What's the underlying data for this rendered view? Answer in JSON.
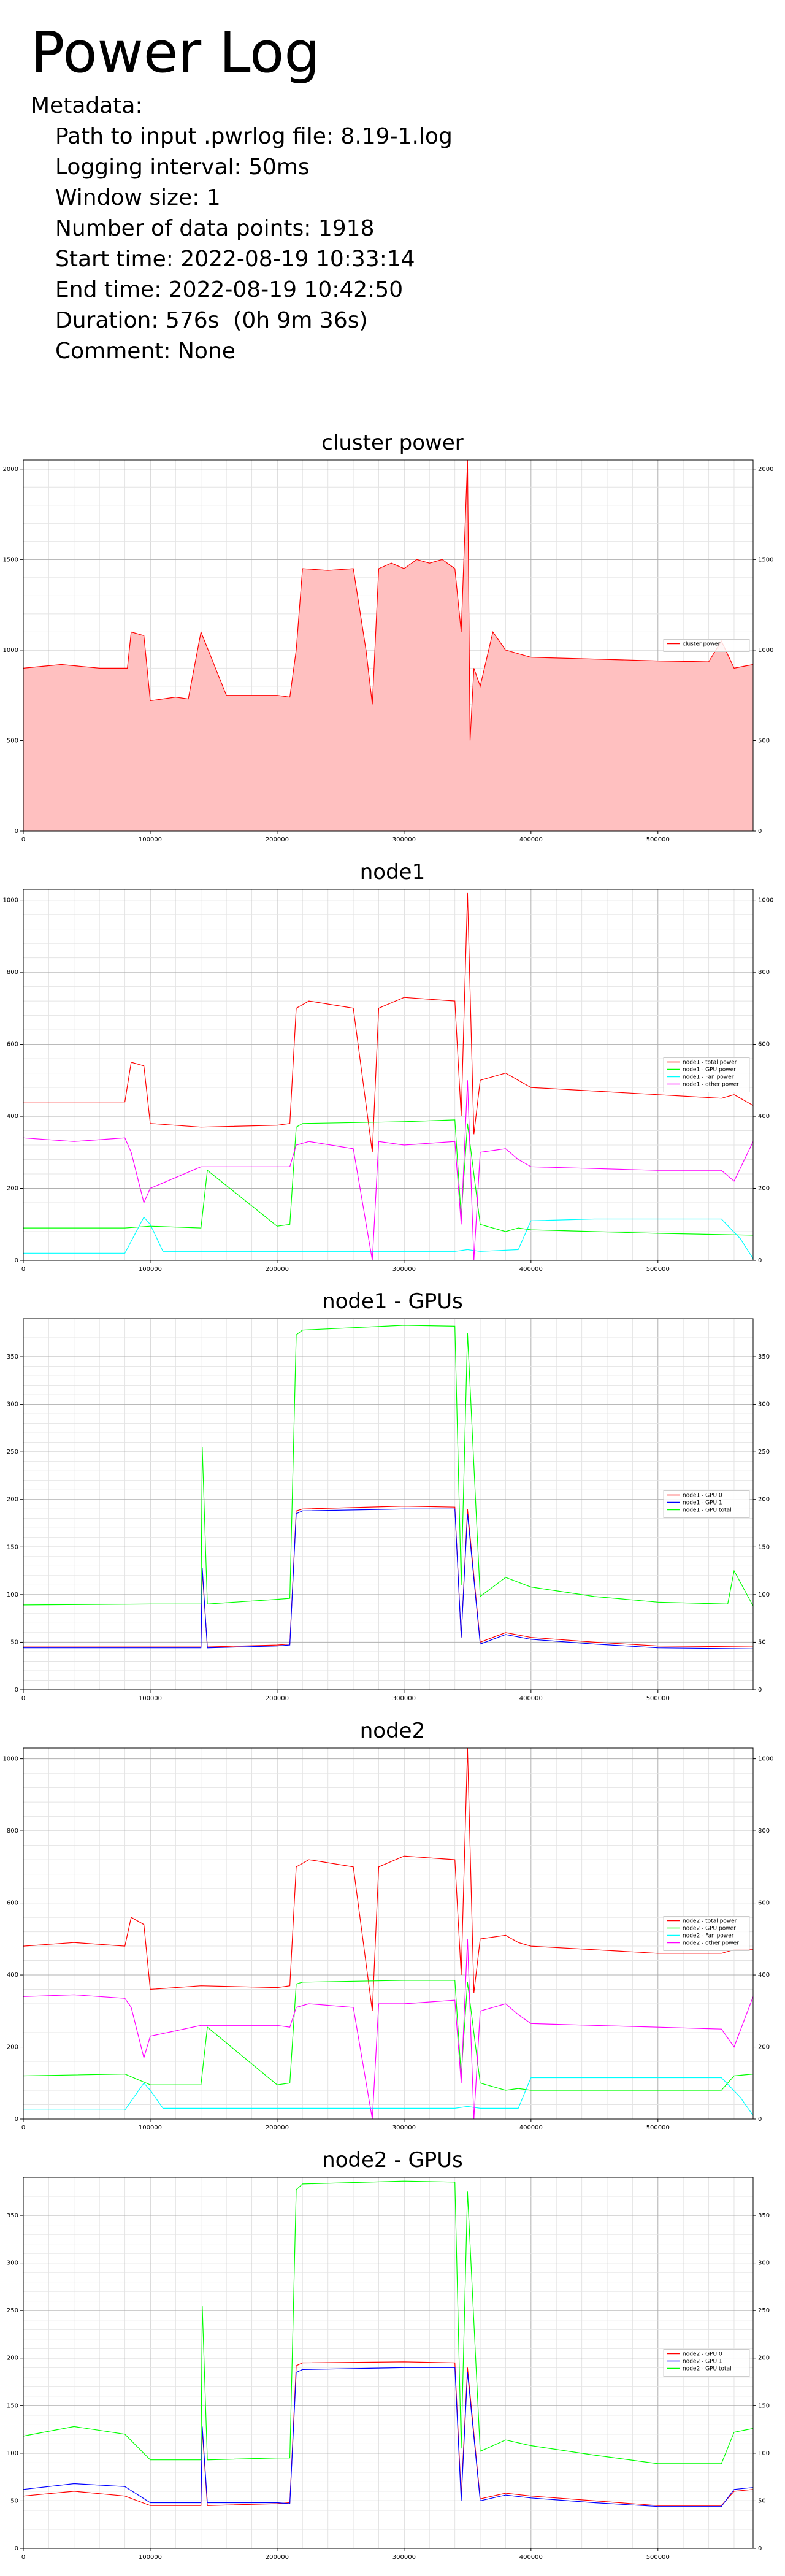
{
  "page": {
    "title": "Power Log",
    "metadata_label": "Metadata:",
    "metadata": [
      "Path to input .pwrlog file: 8.19-1.log",
      "Logging interval: 50ms",
      "Window size: 1",
      "Number of data points: 1918",
      "Start time: 2022-08-19 10:33:14",
      "End time: 2022-08-19 10:42:50",
      "Duration: 576s  (0h 9m 36s)",
      "Comment: None"
    ]
  },
  "colors": {
    "red": "#ff0000",
    "green": "#00ff00",
    "cyan": "#00ffff",
    "magenta": "#ff00ff",
    "blue": "#0000ff",
    "fill": "#ffc0c0"
  },
  "chart_data": [
    {
      "type": "area",
      "title": "cluster power",
      "xlim": [
        0,
        575000
      ],
      "ylim": [
        0,
        2050
      ],
      "xticks": [
        0,
        100000,
        200000,
        300000,
        400000,
        500000
      ],
      "yticks": [
        0,
        500,
        1000,
        1500,
        2000
      ],
      "grid": true,
      "legend_position": "right",
      "series": [
        {
          "name": "cluster power",
          "color": "#ff0000",
          "fill": true,
          "x": [
            0,
            30000,
            60000,
            82000,
            85000,
            95000,
            100000,
            120000,
            130000,
            140000,
            160000,
            200000,
            210000,
            215000,
            220000,
            240000,
            260000,
            270000,
            275000,
            280000,
            290000,
            300000,
            310000,
            320000,
            330000,
            340000,
            345000,
            350000,
            352000,
            355000,
            360000,
            370000,
            380000,
            400000,
            450000,
            500000,
            540000,
            550000,
            560000,
            575000
          ],
          "y": [
            900,
            920,
            900,
            900,
            1100,
            1080,
            720,
            740,
            730,
            1100,
            750,
            750,
            740,
            1000,
            1450,
            1440,
            1450,
            1000,
            700,
            1450,
            1480,
            1450,
            1500,
            1480,
            1500,
            1450,
            1100,
            2050,
            500,
            900,
            800,
            1100,
            1000,
            960,
            950,
            940,
            935,
            1050,
            900,
            920
          ]
        }
      ]
    },
    {
      "type": "line",
      "title": "node1",
      "xlim": [
        0,
        575000
      ],
      "ylim": [
        0,
        1030
      ],
      "xticks": [
        0,
        100000,
        200000,
        300000,
        400000,
        500000
      ],
      "yticks": [
        0,
        200,
        400,
        600,
        800,
        1000
      ],
      "grid": true,
      "legend_position": "right",
      "series": [
        {
          "name": "node1 - total power",
          "color": "#ff0000",
          "x": [
            0,
            40000,
            80000,
            85000,
            95000,
            100000,
            140000,
            200000,
            210000,
            215000,
            225000,
            260000,
            275000,
            280000,
            300000,
            340000,
            345000,
            350000,
            355000,
            360000,
            380000,
            390000,
            400000,
            450000,
            500000,
            550000,
            560000,
            575000
          ],
          "y": [
            440,
            440,
            440,
            550,
            540,
            380,
            370,
            375,
            380,
            700,
            720,
            700,
            300,
            700,
            730,
            720,
            400,
            1020,
            350,
            500,
            520,
            500,
            480,
            470,
            460,
            450,
            460,
            430
          ]
        },
        {
          "name": "node1 - GPU power",
          "color": "#00ff00",
          "x": [
            0,
            80000,
            100000,
            140000,
            145000,
            200000,
            210000,
            215000,
            220000,
            300000,
            340000,
            345000,
            350000,
            360000,
            380000,
            390000,
            400000,
            450000,
            500000,
            575000
          ],
          "y": [
            90,
            90,
            95,
            90,
            250,
            95,
            100,
            370,
            380,
            385,
            390,
            120,
            380,
            100,
            80,
            90,
            85,
            80,
            75,
            70
          ]
        },
        {
          "name": "node1 - Fan power",
          "color": "#00ffff",
          "x": [
            0,
            80000,
            95000,
            100000,
            110000,
            200000,
            300000,
            340000,
            350000,
            360000,
            390000,
            400000,
            450000,
            550000,
            565000,
            575000
          ],
          "y": [
            20,
            20,
            120,
            100,
            25,
            25,
            25,
            25,
            30,
            25,
            30,
            110,
            115,
            115,
            60,
            5
          ]
        },
        {
          "name": "node1 - other power",
          "color": "#ff00ff",
          "x": [
            0,
            40000,
            80000,
            85000,
            95000,
            100000,
            140000,
            200000,
            210000,
            215000,
            225000,
            260000,
            275000,
            280000,
            300000,
            340000,
            345000,
            350000,
            355000,
            360000,
            380000,
            390000,
            400000,
            450000,
            500000,
            550000,
            560000,
            575000
          ],
          "y": [
            340,
            330,
            340,
            300,
            160,
            200,
            260,
            260,
            260,
            320,
            330,
            310,
            0,
            330,
            320,
            330,
            100,
            500,
            0,
            300,
            310,
            280,
            260,
            255,
            250,
            250,
            220,
            330
          ]
        }
      ]
    },
    {
      "type": "line",
      "title": "node1 - GPUs",
      "xlim": [
        0,
        575000
      ],
      "ylim": [
        0,
        390
      ],
      "xticks": [
        0,
        100000,
        200000,
        300000,
        400000,
        500000
      ],
      "yticks": [
        0,
        50,
        100,
        150,
        200,
        250,
        300,
        350
      ],
      "grid": true,
      "legend_position": "right",
      "series": [
        {
          "name": "node1 - GPU 0",
          "color": "#ff0000",
          "x": [
            0,
            100000,
            140000,
            141000,
            145000,
            200000,
            210000,
            215000,
            220000,
            300000,
            340000,
            345000,
            350000,
            360000,
            380000,
            400000,
            450000,
            500000,
            575000
          ],
          "y": [
            45,
            45,
            45,
            125,
            45,
            47,
            48,
            188,
            190,
            193,
            192,
            55,
            190,
            50,
            60,
            55,
            50,
            46,
            45
          ]
        },
        {
          "name": "node1 - GPU 1",
          "color": "#0000ff",
          "x": [
            0,
            100000,
            140000,
            141000,
            145000,
            200000,
            210000,
            215000,
            220000,
            300000,
            340000,
            345000,
            350000,
            360000,
            380000,
            400000,
            450000,
            500000,
            575000
          ],
          "y": [
            44,
            44,
            44,
            128,
            44,
            46,
            47,
            185,
            188,
            190,
            190,
            55,
            185,
            48,
            58,
            53,
            48,
            44,
            43
          ]
        },
        {
          "name": "node1 - GPU total",
          "color": "#00ff00",
          "x": [
            0,
            100000,
            140000,
            141000,
            145000,
            200000,
            210000,
            215000,
            220000,
            300000,
            340000,
            345000,
            350000,
            360000,
            380000,
            400000,
            450000,
            500000,
            555000,
            560000,
            575000
          ],
          "y": [
            89,
            90,
            90,
            255,
            90,
            95,
            96,
            373,
            378,
            383,
            382,
            110,
            375,
            98,
            118,
            108,
            98,
            92,
            90,
            125,
            88
          ]
        }
      ]
    },
    {
      "type": "line",
      "title": "node2",
      "xlim": [
        0,
        575000
      ],
      "ylim": [
        0,
        1030
      ],
      "xticks": [
        0,
        100000,
        200000,
        300000,
        400000,
        500000
      ],
      "yticks": [
        0,
        200,
        400,
        600,
        800,
        1000
      ],
      "grid": true,
      "legend_position": "right",
      "series": [
        {
          "name": "node2 - total power",
          "color": "#ff0000",
          "x": [
            0,
            40000,
            80000,
            85000,
            95000,
            100000,
            140000,
            200000,
            210000,
            215000,
            225000,
            260000,
            275000,
            280000,
            300000,
            340000,
            345000,
            350000,
            355000,
            360000,
            380000,
            390000,
            400000,
            450000,
            500000,
            550000,
            560000,
            575000
          ],
          "y": [
            480,
            490,
            480,
            560,
            540,
            360,
            370,
            365,
            370,
            700,
            720,
            700,
            300,
            700,
            730,
            720,
            400,
            1030,
            350,
            500,
            510,
            490,
            480,
            470,
            460,
            460,
            470,
            470
          ]
        },
        {
          "name": "node2 - GPU power",
          "color": "#00ff00",
          "x": [
            0,
            80000,
            100000,
            140000,
            145000,
            200000,
            210000,
            215000,
            220000,
            300000,
            340000,
            345000,
            350000,
            360000,
            380000,
            390000,
            400000,
            450000,
            500000,
            550000,
            560000,
            575000
          ],
          "y": [
            120,
            125,
            95,
            95,
            255,
            95,
            100,
            375,
            380,
            385,
            385,
            120,
            380,
            100,
            80,
            85,
            80,
            80,
            80,
            80,
            120,
            125
          ]
        },
        {
          "name": "node2 - Fan power",
          "color": "#00ffff",
          "x": [
            0,
            80000,
            95000,
            100000,
            110000,
            200000,
            300000,
            340000,
            350000,
            360000,
            390000,
            400000,
            450000,
            550000,
            565000,
            575000
          ],
          "y": [
            25,
            25,
            100,
            80,
            30,
            30,
            30,
            30,
            35,
            30,
            30,
            115,
            115,
            115,
            60,
            10
          ]
        },
        {
          "name": "node2 - other power",
          "color": "#ff00ff",
          "x": [
            0,
            40000,
            80000,
            85000,
            95000,
            100000,
            140000,
            200000,
            210000,
            215000,
            225000,
            260000,
            275000,
            280000,
            300000,
            340000,
            345000,
            350000,
            355000,
            360000,
            380000,
            390000,
            400000,
            450000,
            500000,
            550000,
            560000,
            575000
          ],
          "y": [
            340,
            345,
            335,
            310,
            170,
            230,
            260,
            260,
            255,
            310,
            320,
            310,
            0,
            320,
            320,
            330,
            100,
            500,
            0,
            300,
            320,
            290,
            265,
            260,
            255,
            250,
            200,
            340
          ]
        }
      ]
    },
    {
      "type": "line",
      "title": "node2 - GPUs",
      "xlim": [
        0,
        575000
      ],
      "ylim": [
        0,
        390
      ],
      "xticks": [
        0,
        100000,
        200000,
        300000,
        400000,
        500000
      ],
      "yticks": [
        0,
        50,
        100,
        150,
        200,
        250,
        300,
        350
      ],
      "grid": true,
      "legend_position": "right",
      "series": [
        {
          "name": "node2 - GPU 0",
          "color": "#ff0000",
          "x": [
            0,
            40000,
            80000,
            100000,
            140000,
            141000,
            145000,
            200000,
            210000,
            215000,
            220000,
            300000,
            340000,
            345000,
            350000,
            360000,
            380000,
            400000,
            450000,
            500000,
            550000,
            560000,
            575000
          ],
          "y": [
            55,
            60,
            55,
            45,
            45,
            125,
            45,
            47,
            48,
            192,
            195,
            196,
            195,
            55,
            190,
            52,
            58,
            55,
            50,
            45,
            45,
            60,
            62
          ]
        },
        {
          "name": "node2 - GPU 1",
          "color": "#0000ff",
          "x": [
            0,
            40000,
            80000,
            100000,
            140000,
            141000,
            145000,
            200000,
            210000,
            215000,
            220000,
            300000,
            340000,
            345000,
            350000,
            360000,
            380000,
            400000,
            450000,
            500000,
            550000,
            560000,
            575000
          ],
          "y": [
            62,
            68,
            65,
            48,
            48,
            128,
            48,
            48,
            47,
            185,
            188,
            190,
            190,
            50,
            185,
            50,
            56,
            53,
            48,
            44,
            44,
            62,
            64
          ]
        },
        {
          "name": "node2 - GPU total",
          "color": "#00ff00",
          "x": [
            0,
            40000,
            80000,
            100000,
            140000,
            141000,
            145000,
            200000,
            210000,
            215000,
            220000,
            300000,
            340000,
            345000,
            350000,
            360000,
            380000,
            400000,
            450000,
            500000,
            550000,
            560000,
            575000
          ],
          "y": [
            118,
            128,
            120,
            93,
            93,
            255,
            93,
            95,
            95,
            377,
            383,
            386,
            385,
            105,
            375,
            102,
            114,
            108,
            98,
            89,
            89,
            122,
            126
          ]
        }
      ]
    }
  ]
}
